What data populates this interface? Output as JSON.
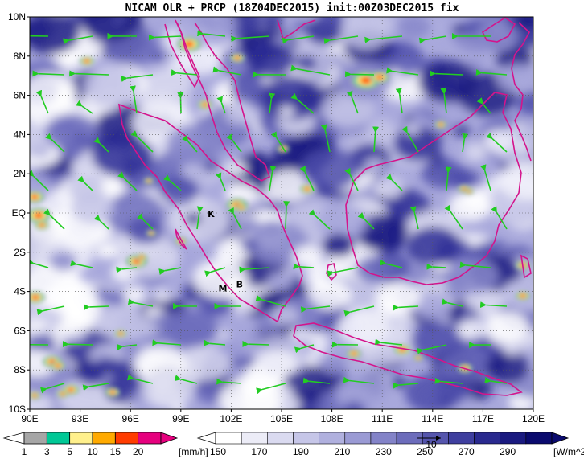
{
  "title": "NICAM OLR + PRCP (18Z04DEC2015) init:00Z03DEC2015 fix",
  "lat_labels": [
    "10N",
    "8N",
    "6N",
    "4N",
    "2N",
    "EQ",
    "2S",
    "4S",
    "6S",
    "8S",
    "10S"
  ],
  "lon_labels": [
    "90E",
    "93E",
    "96E",
    "99E",
    "102E",
    "105E",
    "108E",
    "111E",
    "114E",
    "117E",
    "120E"
  ],
  "domain": {
    "lon_min": 90,
    "lon_max": 120,
    "lat_min": -10,
    "lat_max": 10
  },
  "place_labels": [
    {
      "text": "K",
      "lon": 100.8,
      "lat": -0.2
    },
    {
      "text": "M",
      "lon": 101.5,
      "lat": -4.0
    },
    {
      "text": "B",
      "lon": 102.5,
      "lat": -3.8
    }
  ],
  "prcp_colorbar": {
    "unit": "[mm/h]",
    "ticks": [
      "1",
      "3",
      "5",
      "10",
      "15",
      "20"
    ],
    "colors": [
      "#ffffff",
      "#a6a6a6",
      "#00c896",
      "#fff08c",
      "#ffaa00",
      "#ff3c00",
      "#e6007e"
    ]
  },
  "olr_colorbar": {
    "unit": "[W/m^2]",
    "ticks": [
      "150",
      "170",
      "190",
      "210",
      "230",
      "250",
      "270",
      "290"
    ],
    "colors": [
      "#ffffff",
      "#ececf7",
      "#dadaf0",
      "#c6c6e8",
      "#b0b0de",
      "#9a9ad4",
      "#8383c8",
      "#6c6cbb",
      "#5555ad",
      "#3f3f9f",
      "#2a2a8f",
      "#1a1a80",
      "#0a0a6e"
    ]
  },
  "vector_reference_label": "10",
  "colors": {
    "coast": "#d4148c",
    "wind": "#22cc22",
    "olr_dark": "#2a2a8f"
  }
}
